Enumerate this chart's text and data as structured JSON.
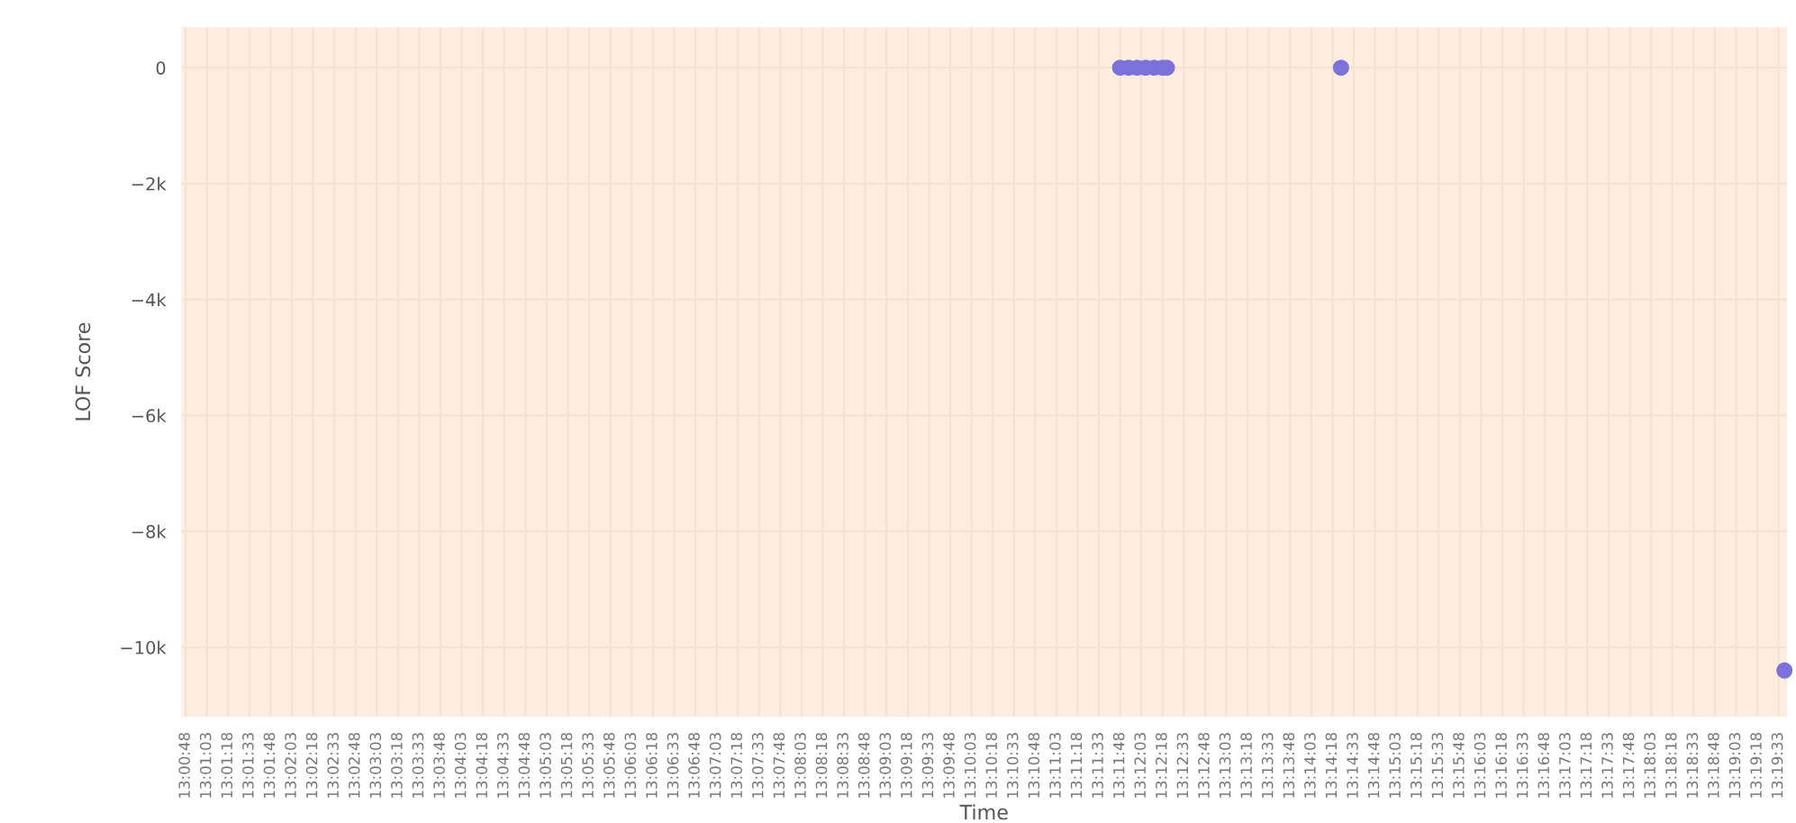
{
  "chart_data": {
    "type": "scatter",
    "xlabel": "Time",
    "ylabel": "LOF Score",
    "x": [
      13.19667,
      13.19833,
      13.2,
      13.20167,
      13.20333,
      13.205,
      13.20583,
      13.24,
      13.327
    ],
    "values": [
      0,
      0,
      0,
      0,
      0,
      0,
      0,
      0,
      -10400
    ],
    "color": "#7b72dc",
    "marker": "circle",
    "grid": true,
    "xlim": [
      13.0125,
      13.3275
    ],
    "xticks": [
      {
        "value": 13.01333,
        "label": "13:00:48"
      },
      {
        "value": 13.0175,
        "label": "13:01:03"
      },
      {
        "value": 13.02167,
        "label": "13:01:18"
      },
      {
        "value": 13.02583,
        "label": "13:01:33"
      },
      {
        "value": 13.03,
        "label": "13:01:48"
      },
      {
        "value": 13.03417,
        "label": "13:02:03"
      },
      {
        "value": 13.03833,
        "label": "13:02:18"
      },
      {
        "value": 13.0425,
        "label": "13:02:33"
      },
      {
        "value": 13.04667,
        "label": "13:02:48"
      },
      {
        "value": 13.05083,
        "label": "13:03:03"
      },
      {
        "value": 13.055,
        "label": "13:03:18"
      },
      {
        "value": 13.05917,
        "label": "13:03:33"
      },
      {
        "value": 13.06333,
        "label": "13:03:48"
      },
      {
        "value": 13.0675,
        "label": "13:04:03"
      },
      {
        "value": 13.07167,
        "label": "13:04:18"
      },
      {
        "value": 13.07583,
        "label": "13:04:33"
      },
      {
        "value": 13.08,
        "label": "13:04:48"
      },
      {
        "value": 13.08417,
        "label": "13:05:03"
      },
      {
        "value": 13.08833,
        "label": "13:05:18"
      },
      {
        "value": 13.0925,
        "label": "13:05:33"
      },
      {
        "value": 13.09667,
        "label": "13:05:48"
      },
      {
        "value": 13.10083,
        "label": "13:06:03"
      },
      {
        "value": 13.105,
        "label": "13:06:18"
      },
      {
        "value": 13.10917,
        "label": "13:06:33"
      },
      {
        "value": 13.11333,
        "label": "13:06:48"
      },
      {
        "value": 13.1175,
        "label": "13:07:03"
      },
      {
        "value": 13.12167,
        "label": "13:07:18"
      },
      {
        "value": 13.12583,
        "label": "13:07:33"
      },
      {
        "value": 13.13,
        "label": "13:07:48"
      },
      {
        "value": 13.13417,
        "label": "13:08:03"
      },
      {
        "value": 13.13833,
        "label": "13:08:18"
      },
      {
        "value": 13.1425,
        "label": "13:08:33"
      },
      {
        "value": 13.14667,
        "label": "13:08:48"
      },
      {
        "value": 13.15083,
        "label": "13:09:03"
      },
      {
        "value": 13.155,
        "label": "13:09:18"
      },
      {
        "value": 13.15917,
        "label": "13:09:33"
      },
      {
        "value": 13.16333,
        "label": "13:09:48"
      },
      {
        "value": 13.1675,
        "label": "13:10:03"
      },
      {
        "value": 13.17167,
        "label": "13:10:18"
      },
      {
        "value": 13.17583,
        "label": "13:10:33"
      },
      {
        "value": 13.18,
        "label": "13:10:48"
      },
      {
        "value": 13.18417,
        "label": "13:11:03"
      },
      {
        "value": 13.18833,
        "label": "13:11:18"
      },
      {
        "value": 13.1925,
        "label": "13:11:33"
      },
      {
        "value": 13.19667,
        "label": "13:11:48"
      },
      {
        "value": 13.20083,
        "label": "13:12:03"
      },
      {
        "value": 13.205,
        "label": "13:12:18"
      },
      {
        "value": 13.20917,
        "label": "13:12:33"
      },
      {
        "value": 13.21333,
        "label": "13:12:48"
      },
      {
        "value": 13.2175,
        "label": "13:13:03"
      },
      {
        "value": 13.22167,
        "label": "13:13:18"
      },
      {
        "value": 13.22583,
        "label": "13:13:33"
      },
      {
        "value": 13.23,
        "label": "13:13:48"
      },
      {
        "value": 13.23417,
        "label": "13:14:03"
      },
      {
        "value": 13.23833,
        "label": "13:14:18"
      },
      {
        "value": 13.2425,
        "label": "13:14:33"
      },
      {
        "value": 13.24667,
        "label": "13:14:48"
      },
      {
        "value": 13.25083,
        "label": "13:15:03"
      },
      {
        "value": 13.255,
        "label": "13:15:18"
      },
      {
        "value": 13.25917,
        "label": "13:15:33"
      },
      {
        "value": 13.26333,
        "label": "13:15:48"
      },
      {
        "value": 13.2675,
        "label": "13:16:03"
      },
      {
        "value": 13.27167,
        "label": "13:16:18"
      },
      {
        "value": 13.27583,
        "label": "13:16:33"
      },
      {
        "value": 13.28,
        "label": "13:16:48"
      },
      {
        "value": 13.28417,
        "label": "13:17:03"
      },
      {
        "value": 13.28833,
        "label": "13:17:18"
      },
      {
        "value": 13.2925,
        "label": "13:17:33"
      },
      {
        "value": 13.29667,
        "label": "13:17:48"
      },
      {
        "value": 13.30083,
        "label": "13:18:03"
      },
      {
        "value": 13.305,
        "label": "13:18:18"
      },
      {
        "value": 13.30917,
        "label": "13:18:33"
      },
      {
        "value": 13.31333,
        "label": "13:18:48"
      },
      {
        "value": 13.3175,
        "label": "13:19:03"
      },
      {
        "value": 13.32167,
        "label": "13:19:18"
      },
      {
        "value": 13.32583,
        "label": "13:19:33"
      }
    ],
    "ylim": [
      -11200,
      700
    ],
    "yticks": [
      {
        "value": 0,
        "label": "0"
      },
      {
        "value": -2000,
        "label": "−2k"
      },
      {
        "value": -4000,
        "label": "−4k"
      },
      {
        "value": -6000,
        "label": "−6k"
      },
      {
        "value": -8000,
        "label": "−8k"
      },
      {
        "value": -10000,
        "label": "−10k"
      }
    ]
  }
}
